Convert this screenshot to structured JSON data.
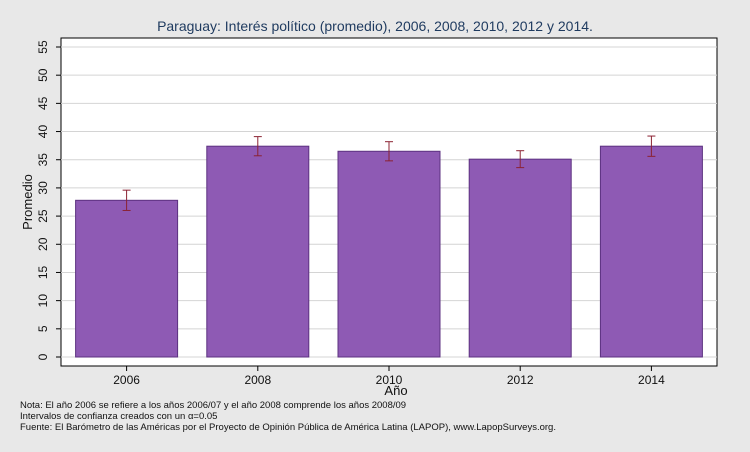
{
  "chart_data": {
    "type": "bar",
    "title": "Paraguay: Interés político (promedio), 2006, 2008, 2010, 2012 y 2014.",
    "xlabel": "Año",
    "ylabel": "Promedio",
    "categories": [
      "2006",
      "2008",
      "2010",
      "2012",
      "2014"
    ],
    "values": [
      27.8,
      37.4,
      36.5,
      35.1,
      37.4
    ],
    "ci_low": [
      26.0,
      35.7,
      34.8,
      33.6,
      35.6
    ],
    "ci_high": [
      29.6,
      39.1,
      38.2,
      36.6,
      39.2
    ],
    "ylim": [
      0,
      55
    ],
    "yticks": [
      "0",
      "5",
      "10",
      "15",
      "20",
      "25",
      "30",
      "35",
      "40",
      "45",
      "50",
      "55"
    ],
    "grid": true,
    "legend": "none",
    "colors": {
      "bar_fill": "#8e5ab4",
      "bar_stroke": "#5c3180",
      "error_bar": "#8b2232",
      "plot_background": "#ffffff",
      "page_background": "#e8e8e8"
    }
  },
  "notes": {
    "line1": "Nota: El año 2006 se refiere a los años 2006/07 y el año 2008 comprende los años 2008/09",
    "line2": "Intervalos de confianza creados con un α=0.05",
    "line3": "Fuente: El Barómetro de las Américas por el Proyecto de Opinión Pública de América Latina (LAPOP), www.LapopSurveys.org."
  }
}
